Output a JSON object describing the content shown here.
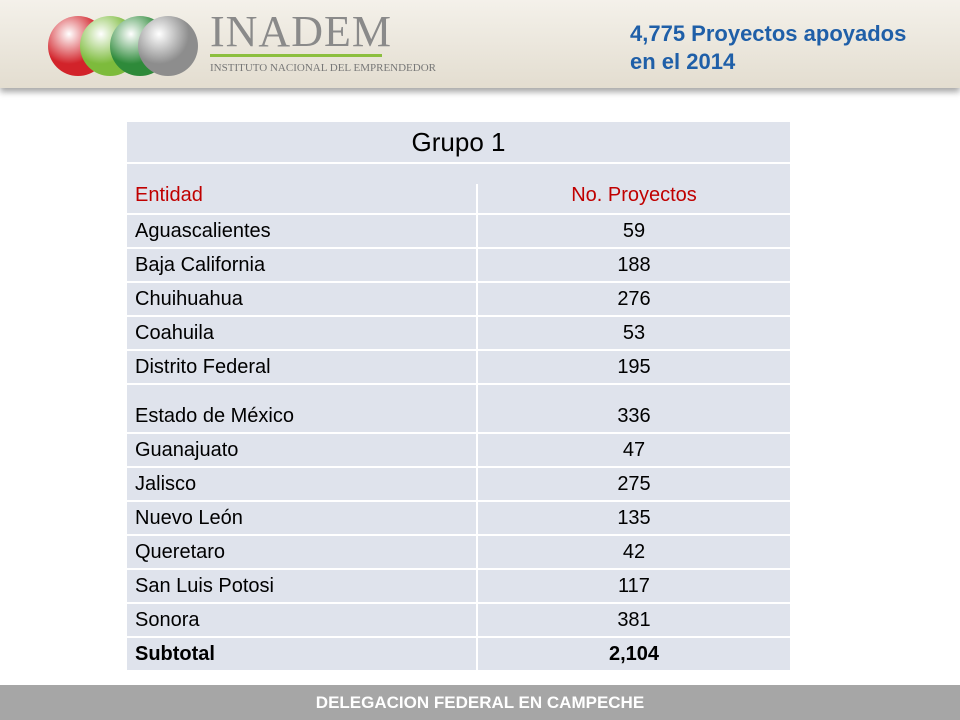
{
  "header": {
    "logo_title": "INADEM",
    "logo_subtitle": "INSTITUTO NACIONAL DEL EMPRENDEDOR",
    "headline": [
      "4,775 Proyectos apoyados",
      "en el 2014"
    ]
  },
  "table": {
    "title": "Grupo 1",
    "columns": [
      "Entidad",
      "No. Proyectos"
    ],
    "rows": [
      [
        "Aguascalientes",
        "59"
      ],
      [
        "Baja California",
        "188"
      ],
      [
        "Chuihuahua",
        "276"
      ],
      [
        "Coahuila",
        "53"
      ],
      [
        "Distrito Federal",
        "195"
      ],
      [
        "Estado de México",
        "336"
      ],
      [
        "Guanajuato",
        "47"
      ],
      [
        "Jalisco",
        "275"
      ],
      [
        "Nuevo León",
        "135"
      ],
      [
        "Queretaro",
        "42"
      ],
      [
        "San Luis Potosi",
        "117"
      ],
      [
        "Sonora",
        "381"
      ]
    ],
    "total": [
      "Subtotal",
      "2,104"
    ]
  },
  "footer": "DELEGACION FEDERAL EN CAMPECHE"
}
